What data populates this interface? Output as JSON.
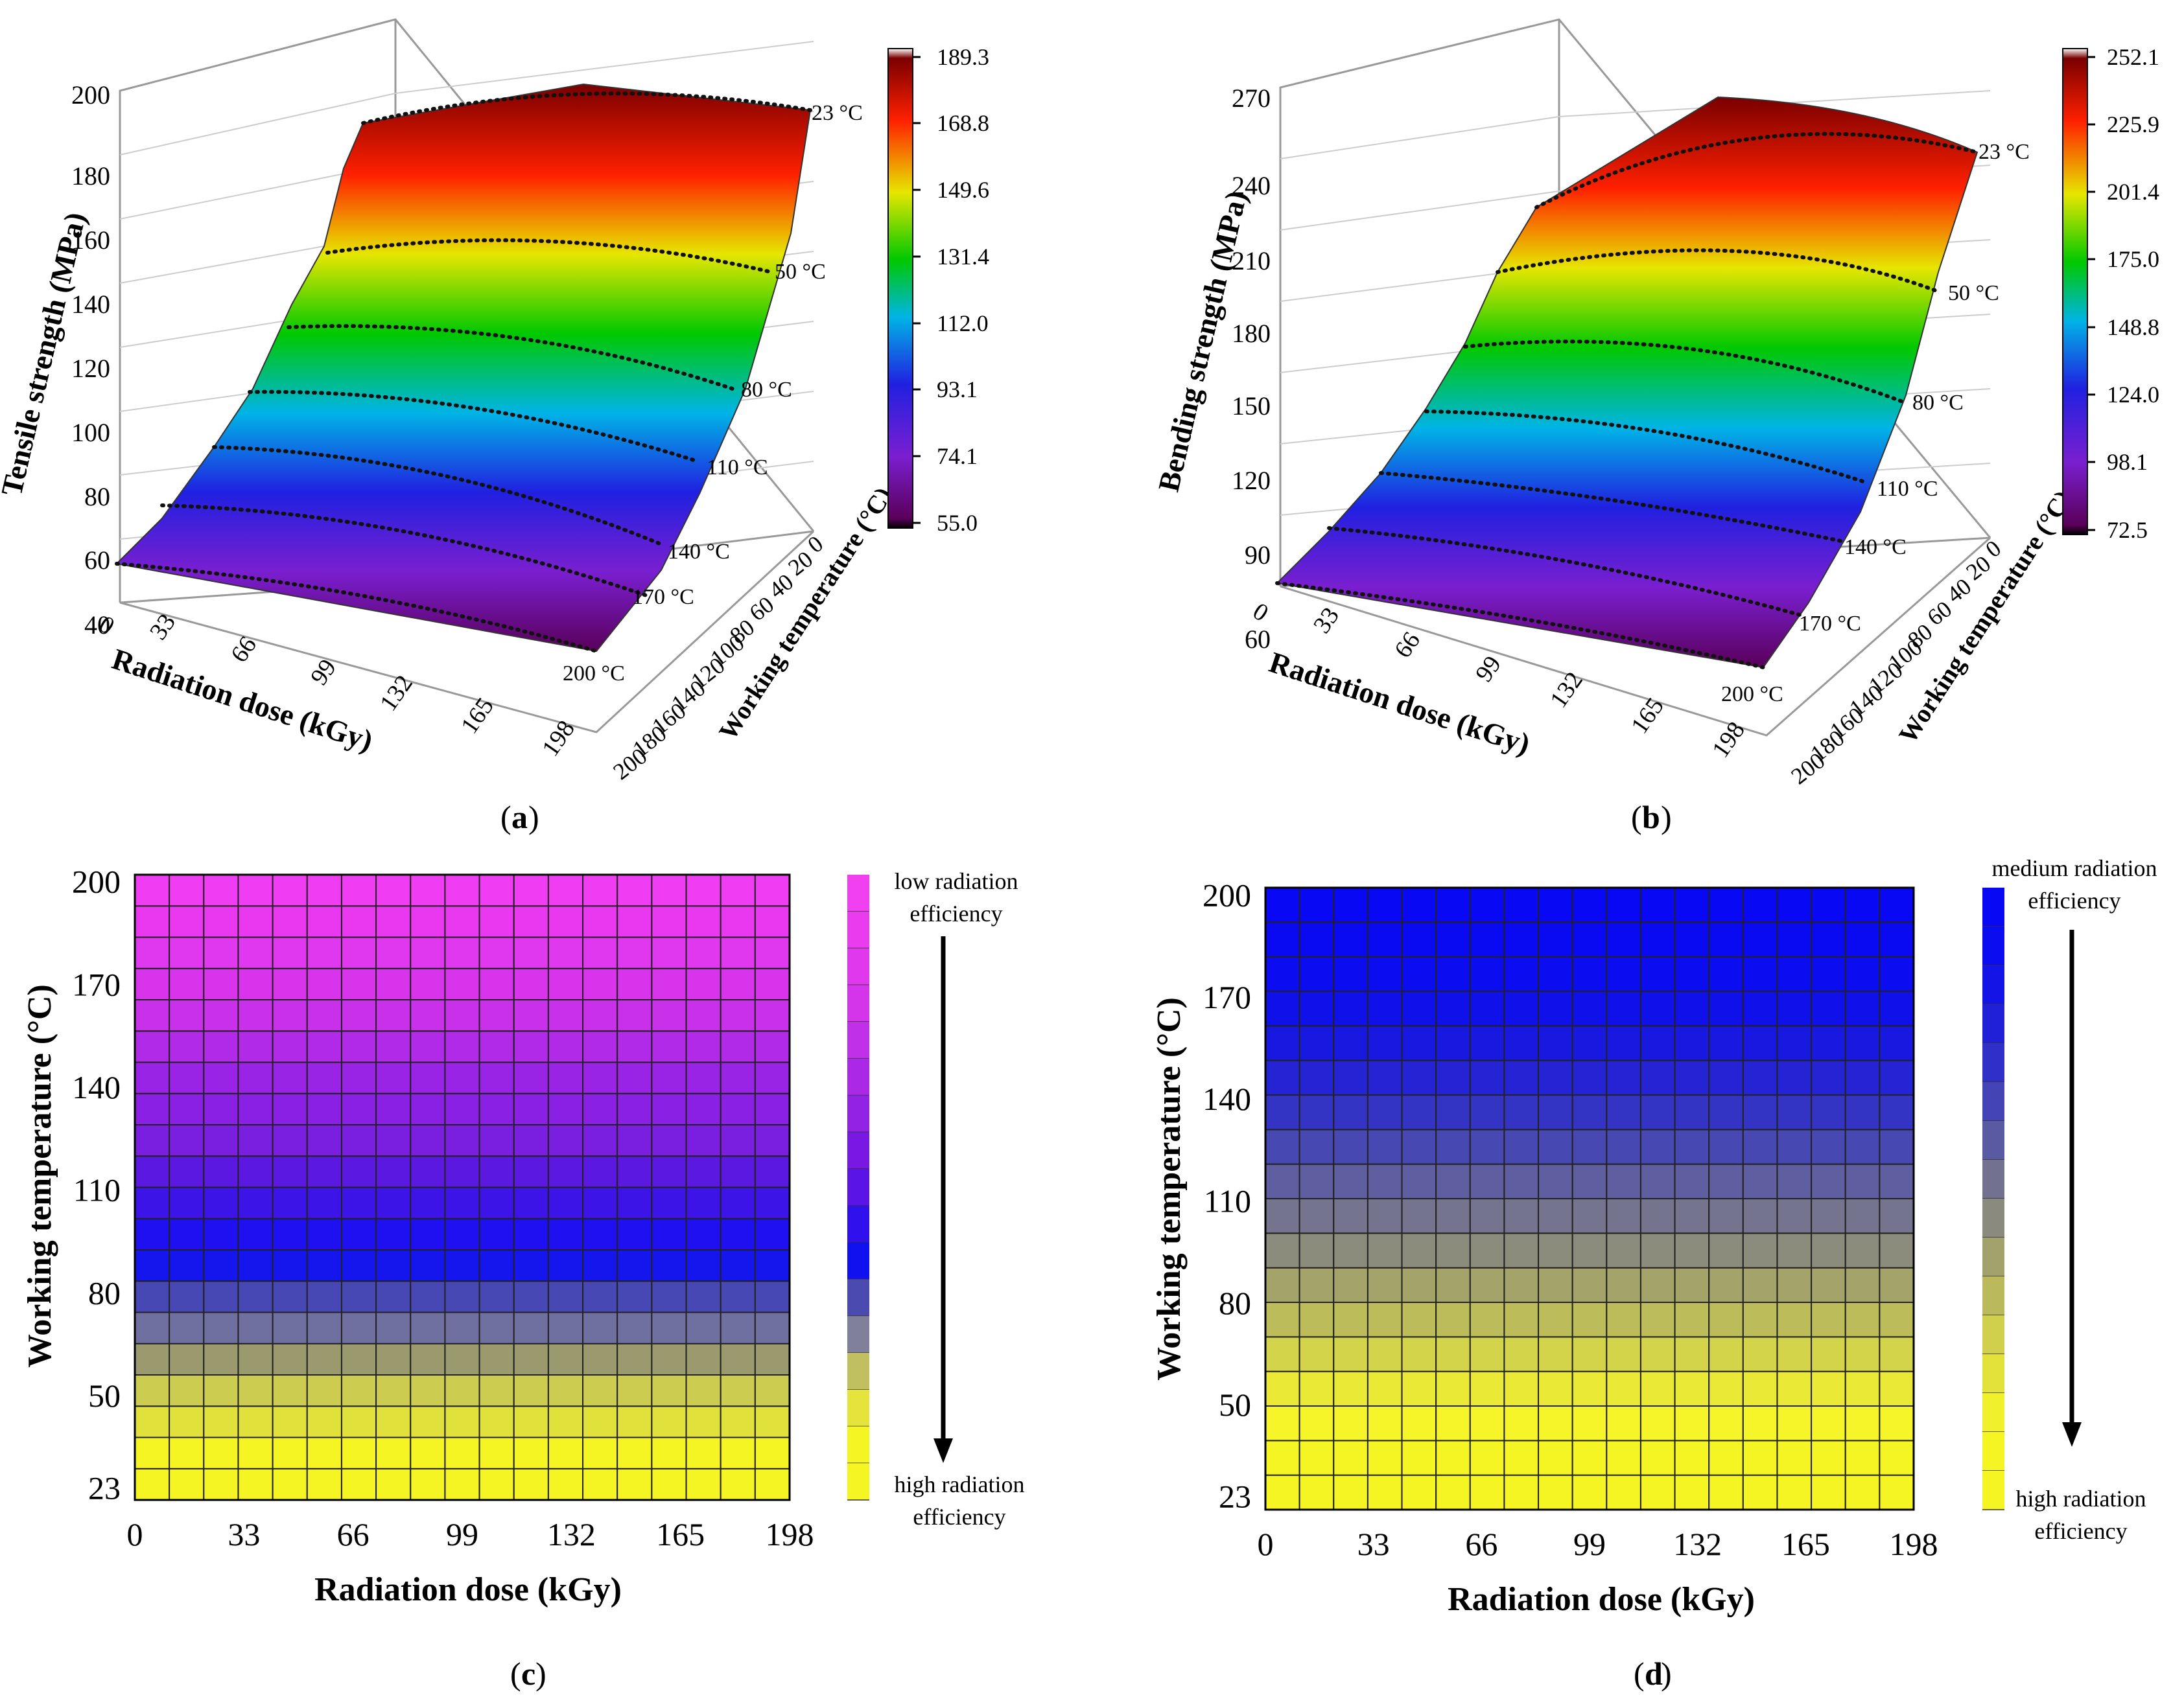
{
  "chart_data": [
    {
      "id": "a",
      "type": "surface3d",
      "panel_label": "a",
      "ylabel": "Tensile strength (MPa)",
      "xlabel": "Radiation dose (kGy)",
      "zlabel": "Working temperature (°C)",
      "x_ticks": [
        "0",
        "33",
        "66",
        "99",
        "132",
        "165",
        "198"
      ],
      "t_ticks": [
        "0",
        "20",
        "40",
        "60",
        "80",
        "100",
        "120",
        "140",
        "160",
        "180",
        "200"
      ],
      "y_ticks": [
        "40",
        "60",
        "80",
        "100",
        "120",
        "140",
        "160",
        "180",
        "200"
      ],
      "ylim": [
        40,
        200
      ],
      "contour_labels": [
        "23 °C",
        "50 °C",
        "80 °C",
        "110 °C",
        "140 °C",
        "170 °C",
        "200 °C"
      ],
      "colorbar_labels": [
        "189.3",
        "168.8",
        "149.6",
        "131.4",
        "112.0",
        "93.1",
        "74.1",
        "55.0"
      ],
      "colorbar_range": [
        55.0,
        189.3
      ],
      "colors": [
        "#5a005a",
        "#7a1fd0",
        "#2020e0",
        "#00b4e6",
        "#00c800",
        "#e6e600",
        "#ff2000",
        "#7a0000"
      ]
    },
    {
      "id": "b",
      "type": "surface3d",
      "panel_label": "b",
      "ylabel": "Bending strength (MPa)",
      "xlabel": "Radiation dose (kGy)",
      "zlabel": "Working temperature (°C)",
      "x_ticks": [
        "0",
        "33",
        "66",
        "99",
        "132",
        "165",
        "198"
      ],
      "t_ticks": [
        "0",
        "20",
        "40",
        "60",
        "80",
        "100",
        "120",
        "140",
        "160",
        "180",
        "200"
      ],
      "y_ticks": [
        "60",
        "90",
        "120",
        "150",
        "180",
        "210",
        "240",
        "270"
      ],
      "ylim": [
        60,
        270
      ],
      "contour_labels": [
        "23 °C",
        "50 °C",
        "80 °C",
        "110 °C",
        "140 °C",
        "170 °C",
        "200 °C"
      ],
      "colorbar_labels": [
        "252.1",
        "225.9",
        "201.4",
        "175.0",
        "148.8",
        "124.0",
        "98.1",
        "72.5"
      ],
      "colorbar_range": [
        72.5,
        252.1
      ],
      "colors": [
        "#5a005a",
        "#7a1fd0",
        "#2020e0",
        "#00b4e6",
        "#00c800",
        "#e6e600",
        "#ff2000",
        "#7a0000"
      ]
    },
    {
      "id": "c",
      "type": "heatmap",
      "panel_label": "c",
      "xlabel": "Radiation dose (kGy)",
      "ylabel": "Working temperature (°C)",
      "x_ticks": [
        "0",
        "33",
        "66",
        "99",
        "132",
        "165",
        "198"
      ],
      "y_ticks": [
        "23",
        "50",
        "80",
        "110",
        "140",
        "170",
        "200"
      ],
      "grid_cols": 19,
      "row_colors_bottom_to_top": [
        "#f5f524",
        "#f5f524",
        "#e1e13c",
        "#cccc50",
        "#9a9a6e",
        "#7070a0",
        "#4848b4",
        "#1515ee",
        "#1e10f0",
        "#3c14e8",
        "#5a18e0",
        "#7a1ee0",
        "#8a20e4",
        "#9a24e6",
        "#b02ae8",
        "#c830ea",
        "#d834ec",
        "#e038ee",
        "#ea38f0",
        "#f03cf2"
      ],
      "legend_top": "low radiation efficiency",
      "legend_bottom": "high radiation efficiency",
      "legend_top_lines": [
        "low radiation",
        "efficiency"
      ],
      "legend_bottom_lines": [
        "high radiation",
        "efficiency"
      ],
      "legend_colors_top_to_bottom": [
        "#f040f0",
        "#ea3cee",
        "#e038ec",
        "#d434ea",
        "#c030e8",
        "#aa28e6",
        "#9222e4",
        "#7818e2",
        "#5a14e6",
        "#3010ec",
        "#1010f0",
        "#4a4ab0",
        "#80809a",
        "#c0c060",
        "#e4e43c",
        "#f5f524",
        "#f5f524"
      ]
    },
    {
      "id": "d",
      "type": "heatmap",
      "panel_label": "d",
      "xlabel": "Radiation dose (kGy)",
      "ylabel": "Working temperature (°C)",
      "x_ticks": [
        "0",
        "33",
        "66",
        "99",
        "132",
        "165",
        "198"
      ],
      "y_ticks": [
        "23",
        "50",
        "80",
        "110",
        "140",
        "170",
        "200"
      ],
      "grid_cols": 19,
      "row_colors_bottom_to_top": [
        "#f5f524",
        "#f5f524",
        "#f5f52a",
        "#eaea36",
        "#d4d44a",
        "#bcbc5a",
        "#a4a46a",
        "#8c8c7c",
        "#74748e",
        "#5e5ea0",
        "#4848b2",
        "#3434c4",
        "#2424d4",
        "#1818e0",
        "#1010ea",
        "#0c0cf0",
        "#0a0af2",
        "#0808f4"
      ],
      "legend_top": "medium radiation efficiency",
      "legend_bottom": "high radiation efficiency",
      "legend_top_lines": [
        "medium radiation",
        "efficiency"
      ],
      "legend_bottom_lines": [
        "high radiation",
        "efficiency"
      ],
      "legend_colors_top_to_bottom": [
        "#0808f4",
        "#0c0cf0",
        "#1414e6",
        "#2020d8",
        "#3030c8",
        "#4444b6",
        "#5a5aa2",
        "#727290",
        "#8a8a7e",
        "#a2a26c",
        "#baba5c",
        "#d0d04c",
        "#e2e23a",
        "#f0f02c",
        "#f5f524",
        "#f5f524"
      ]
    }
  ]
}
